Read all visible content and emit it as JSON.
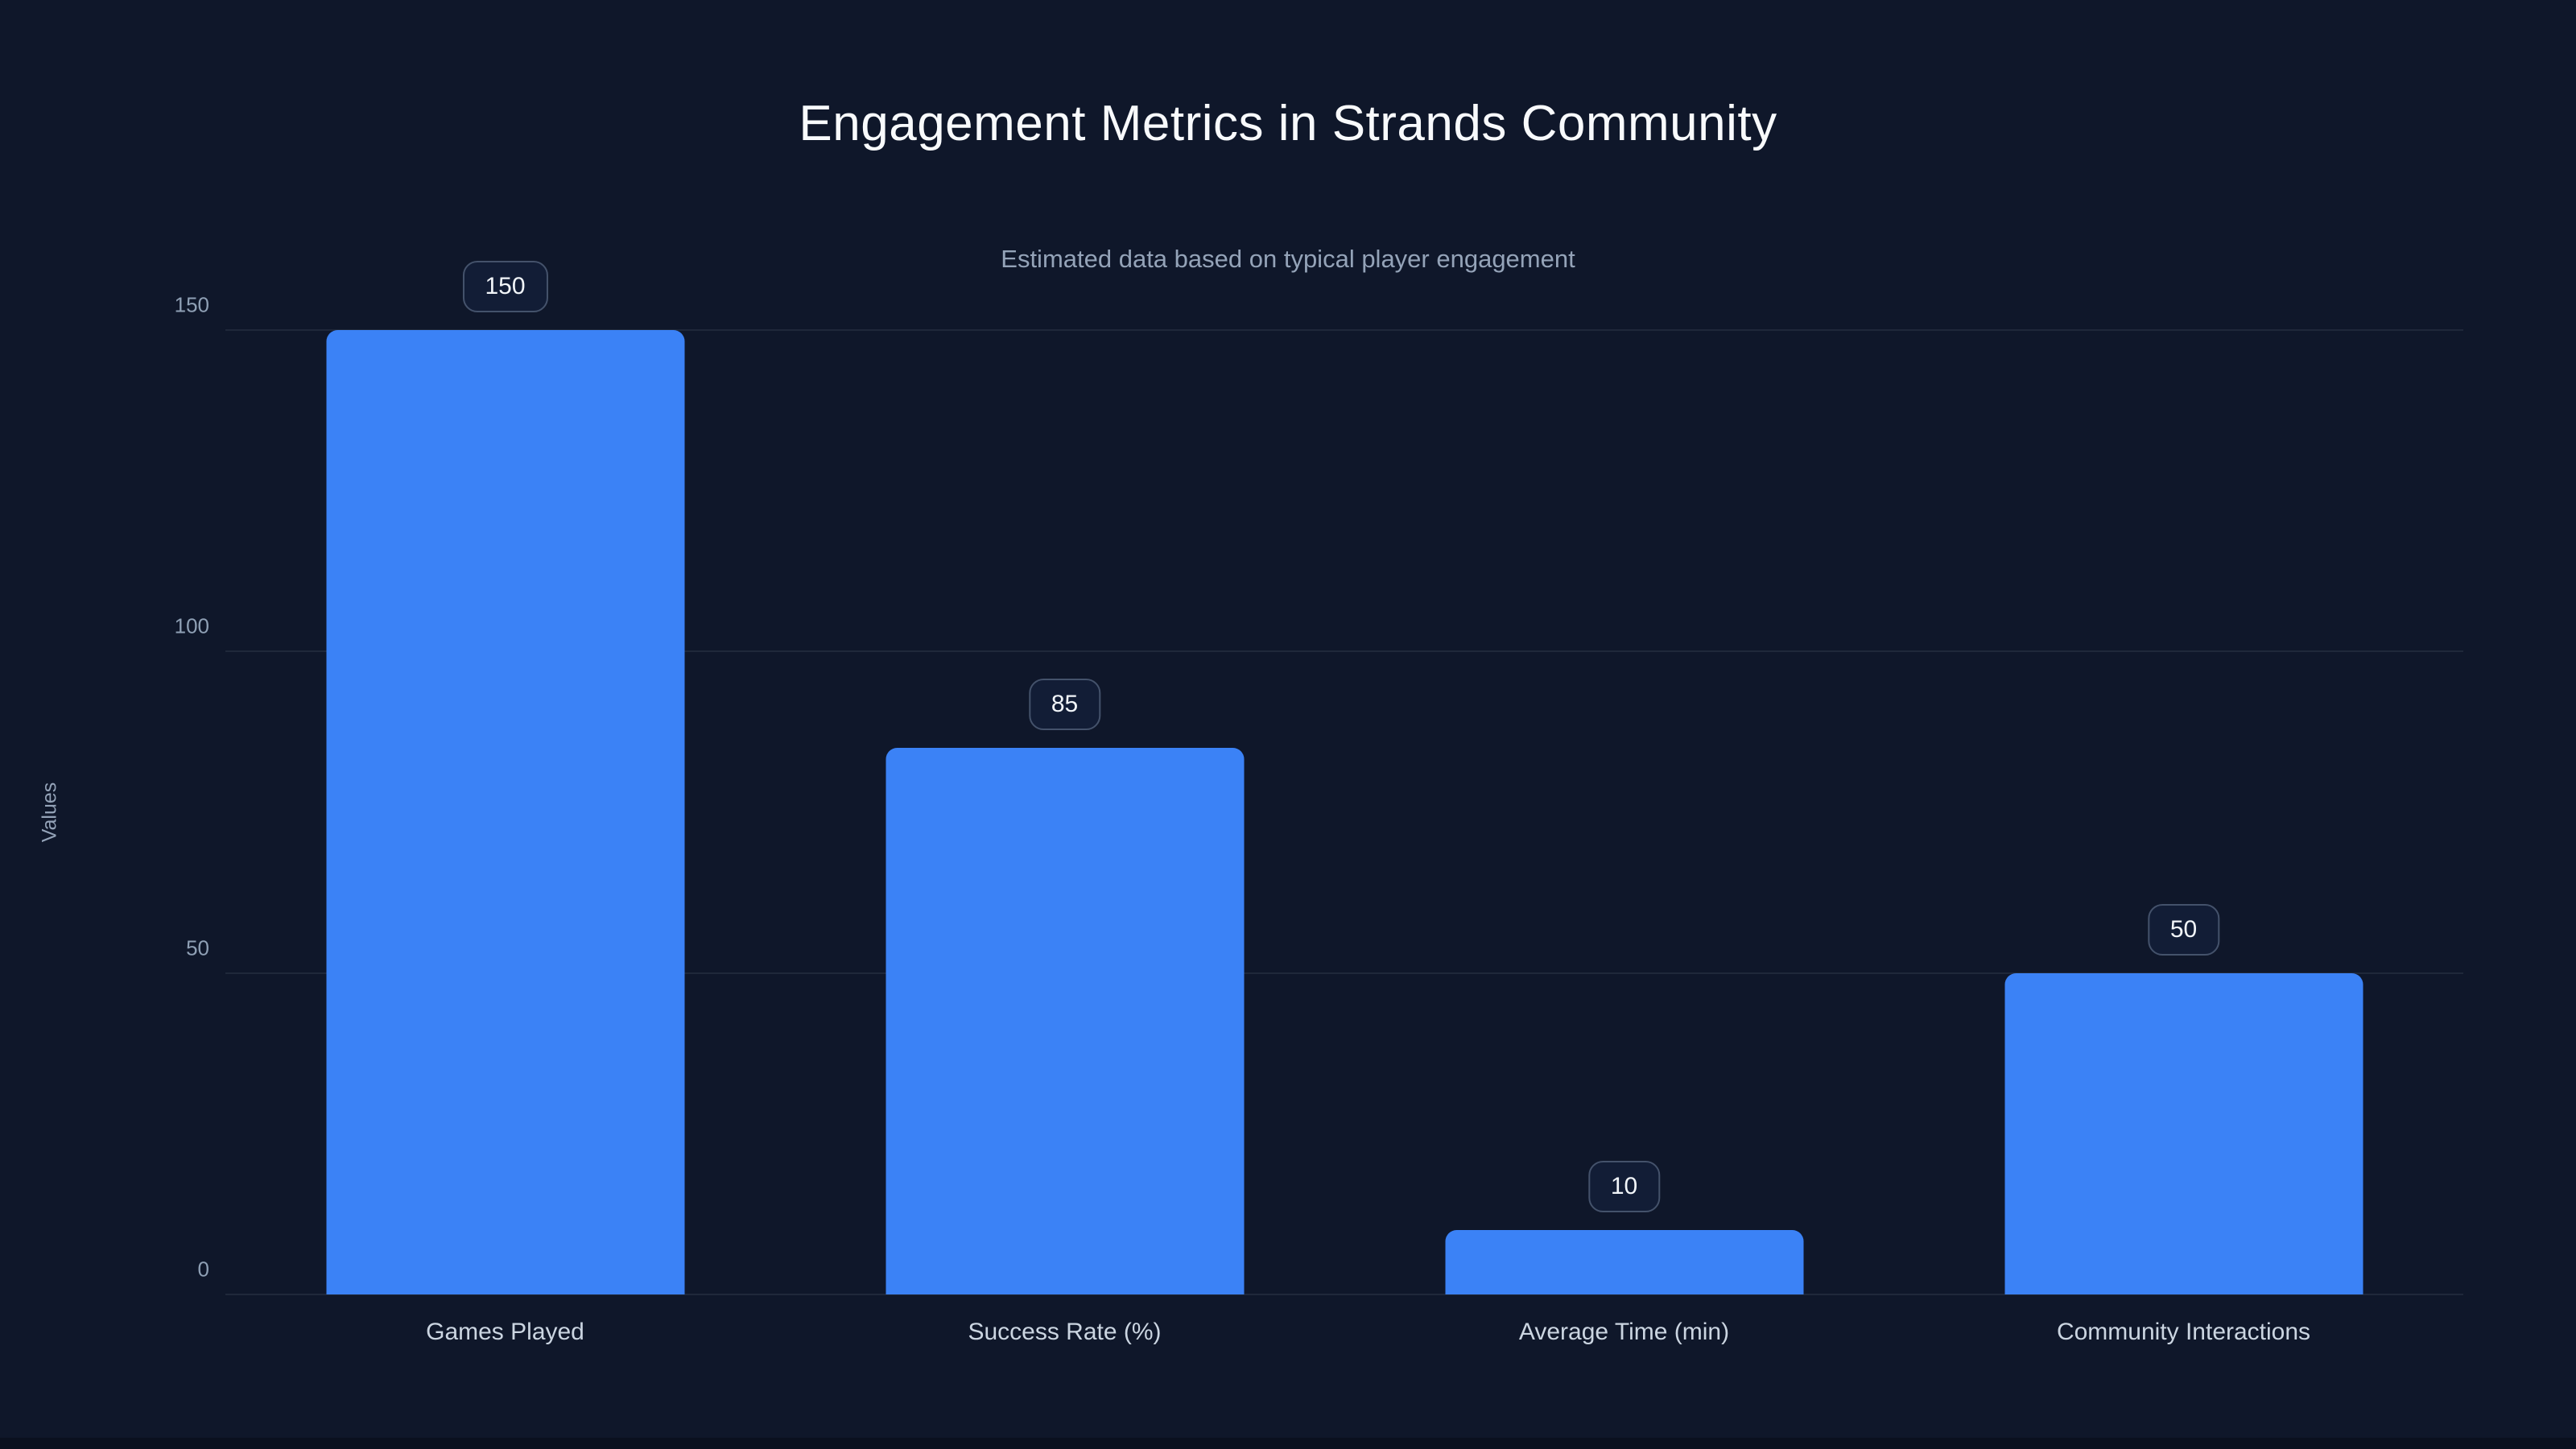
{
  "page": {
    "background": "#0f172a"
  },
  "chart_data": {
    "type": "bar",
    "title": "Engagement Metrics in Strands Community",
    "subtitle": "Estimated data based on typical player engagement",
    "categories": [
      "Games Played",
      "Success Rate (%)",
      "Average Time (min)",
      "Community Interactions"
    ],
    "values": [
      150,
      85,
      10,
      50
    ],
    "value_labels": [
      "150",
      "85",
      "10",
      "50"
    ],
    "xlabel": "",
    "ylabel": "Values",
    "ylim": [
      0,
      150
    ],
    "yticks": [
      0,
      50,
      100,
      150
    ],
    "grid": "horizontal",
    "legend": "none",
    "bar_color": "#3b82f6",
    "value_label_style": "rounded-badge-above-bar"
  }
}
